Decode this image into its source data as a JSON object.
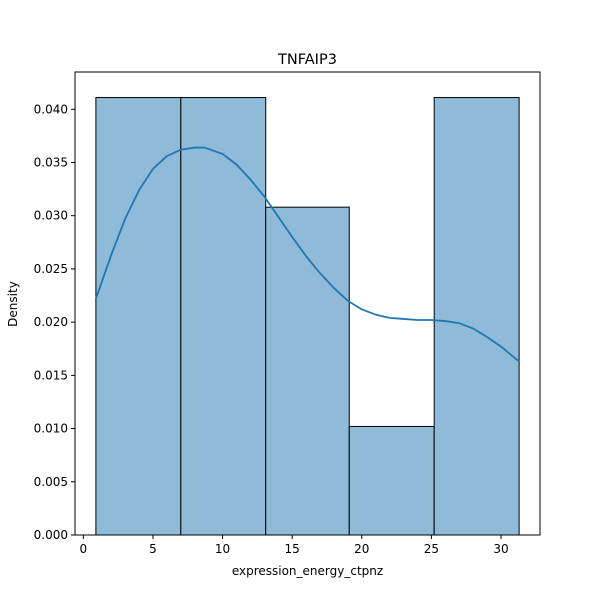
{
  "chart_data": {
    "type": "bar",
    "title": "TNFAIP3",
    "xlabel": "expression_energy_ctpnz",
    "ylabel": "Density",
    "xlim": [
      -0.6,
      32.8
    ],
    "ylim": [
      0,
      0.0435
    ],
    "xticks": [
      0,
      5,
      10,
      15,
      20,
      25,
      30
    ],
    "xtick_labels": [
      "0",
      "5",
      "10",
      "15",
      "20",
      "25",
      "30"
    ],
    "yticks": [
      0,
      0.005,
      0.01,
      0.015,
      0.02,
      0.025,
      0.03,
      0.035,
      0.04
    ],
    "ytick_labels": [
      "0.000",
      "0.005",
      "0.010",
      "0.015",
      "0.020",
      "0.025",
      "0.030",
      "0.035",
      "0.040"
    ],
    "bins": [
      {
        "x0": 0.9,
        "x1": 7.0,
        "density": 0.0411
      },
      {
        "x0": 7.0,
        "x1": 13.1,
        "density": 0.0411
      },
      {
        "x0": 13.1,
        "x1": 19.1,
        "density": 0.0308
      },
      {
        "x0": 19.1,
        "x1": 25.2,
        "density": 0.0102
      },
      {
        "x0": 25.2,
        "x1": 31.3,
        "density": 0.0411
      }
    ],
    "kde": {
      "x": [
        0.9,
        2,
        3,
        4,
        5,
        6,
        7,
        8,
        8.7,
        10,
        11,
        12,
        13,
        14,
        15,
        16,
        17,
        18,
        19,
        20,
        21,
        22,
        23,
        24,
        25,
        26,
        27,
        28,
        29,
        30,
        31.3
      ],
      "y": [
        0.0222,
        0.0263,
        0.0297,
        0.0324,
        0.0344,
        0.0356,
        0.0362,
        0.0364,
        0.0364,
        0.0358,
        0.0348,
        0.0334,
        0.0318,
        0.0299,
        0.028,
        0.0262,
        0.0246,
        0.0232,
        0.022,
        0.0212,
        0.0207,
        0.0204,
        0.0203,
        0.0202,
        0.0202,
        0.0201,
        0.0199,
        0.0194,
        0.0186,
        0.0177,
        0.0163
      ]
    },
    "grid": false,
    "legend": "none"
  }
}
